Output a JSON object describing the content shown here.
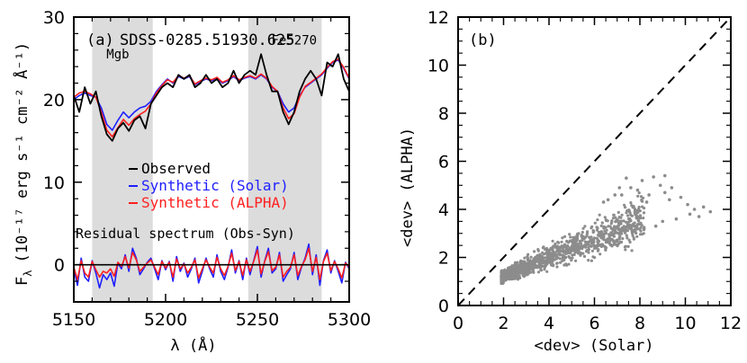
{
  "chart_data": [
    {
      "type": "line",
      "panel_label": "(a)",
      "title": "SDSS-0285.51930.625",
      "xlabel": "λ (Å)",
      "ylabel_prefix": "F",
      "ylabel_sub": "λ",
      "ylabel_units": "(10⁻¹⁷ erg s⁻¹ cm⁻² Å⁻¹)",
      "xlim": [
        5150,
        5300
      ],
      "ylim": [
        -4.5,
        30
      ],
      "x_ticks": [
        5150,
        5200,
        5250,
        5300
      ],
      "y_ticks": [
        0,
        10,
        20,
        30
      ],
      "shaded_regions": [
        {
          "name": "Mgb",
          "range": [
            5160,
            5193
          ]
        },
        {
          "name": "Fe5270",
          "range": [
            5245,
            5285
          ]
        }
      ],
      "annotations": [
        {
          "text": "Mgb",
          "x": 5174,
          "y": 25.0
        },
        {
          "text": "Fe5270",
          "x": 5270,
          "y": 26.7
        },
        {
          "text": "Residual spectrum (Obs-Syn)",
          "x": 5151,
          "y": 3.2
        }
      ],
      "legend": [
        "Observed",
        "Synthetic (Solar)",
        "Synthetic (ALPHA)"
      ],
      "series": [
        {
          "name": "Observed",
          "color": "#000000",
          "x": [
            5150,
            5153,
            5156,
            5159,
            5162,
            5165,
            5168,
            5171,
            5174,
            5177,
            5180,
            5183,
            5186,
            5189,
            5192,
            5195,
            5198,
            5201,
            5204,
            5207,
            5210,
            5213,
            5216,
            5219,
            5222,
            5225,
            5228,
            5231,
            5234,
            5237,
            5240,
            5243,
            5246,
            5249,
            5252,
            5255,
            5258,
            5261,
            5264,
            5267,
            5270,
            5273,
            5276,
            5279,
            5282,
            5285,
            5288,
            5291,
            5294,
            5297,
            5300
          ],
          "y": [
            20.5,
            18.5,
            21.5,
            19.5,
            21.0,
            18.0,
            15.8,
            15.0,
            16.5,
            17.2,
            16.2,
            17.5,
            18.0,
            16.5,
            19.5,
            20.5,
            21.5,
            22.0,
            21.5,
            23.0,
            22.5,
            23.0,
            21.5,
            22.0,
            23.0,
            22.0,
            22.5,
            21.5,
            22.0,
            23.5,
            22.0,
            23.0,
            23.5,
            23.0,
            25.5,
            23.0,
            21.0,
            21.0,
            18.5,
            17.0,
            18.5,
            21.0,
            22.5,
            23.5,
            22.5,
            20.5,
            24.5,
            24.0,
            25.5,
            22.5,
            21.0
          ]
        },
        {
          "name": "Synthetic (Solar)",
          "color": "#1f1fff",
          "x": [
            5150,
            5153,
            5156,
            5159,
            5162,
            5165,
            5168,
            5171,
            5174,
            5177,
            5180,
            5183,
            5186,
            5189,
            5192,
            5195,
            5198,
            5201,
            5204,
            5207,
            5210,
            5213,
            5216,
            5219,
            5222,
            5225,
            5228,
            5231,
            5234,
            5237,
            5240,
            5243,
            5246,
            5249,
            5252,
            5255,
            5258,
            5261,
            5264,
            5267,
            5270,
            5273,
            5276,
            5279,
            5282,
            5285,
            5288,
            5291,
            5294,
            5297,
            5300
          ],
          "y": [
            20.0,
            20.5,
            20.8,
            20.5,
            20.3,
            19.0,
            17.0,
            16.3,
            17.5,
            18.5,
            17.8,
            18.5,
            19.0,
            19.2,
            19.8,
            21.0,
            21.8,
            22.5,
            22.0,
            22.8,
            22.5,
            22.8,
            21.8,
            22.2,
            22.5,
            22.3,
            22.6,
            22.0,
            22.3,
            22.8,
            22.3,
            22.6,
            22.8,
            22.5,
            23.0,
            22.5,
            21.5,
            21.0,
            19.5,
            18.5,
            19.0,
            20.5,
            21.5,
            22.0,
            22.5,
            23.0,
            23.8,
            24.5,
            24.8,
            23.8,
            22.5
          ]
        },
        {
          "name": "Synthetic (ALPHA)",
          "color": "#ff2020",
          "x": [
            5150,
            5153,
            5156,
            5159,
            5162,
            5165,
            5168,
            5171,
            5174,
            5177,
            5180,
            5183,
            5186,
            5189,
            5192,
            5195,
            5198,
            5201,
            5204,
            5207,
            5210,
            5213,
            5216,
            5219,
            5222,
            5225,
            5228,
            5231,
            5234,
            5237,
            5240,
            5243,
            5246,
            5249,
            5252,
            5255,
            5258,
            5261,
            5264,
            5267,
            5270,
            5273,
            5276,
            5279,
            5282,
            5285,
            5288,
            5291,
            5294,
            5297,
            5300
          ],
          "y": [
            20.3,
            20.8,
            21.0,
            20.7,
            20.3,
            18.5,
            16.3,
            15.5,
            16.6,
            17.6,
            16.9,
            17.7,
            18.2,
            18.6,
            19.5,
            20.8,
            21.7,
            22.4,
            22.1,
            22.9,
            22.6,
            22.9,
            21.9,
            22.3,
            22.6,
            22.4,
            22.7,
            22.1,
            22.4,
            22.9,
            22.4,
            22.7,
            22.9,
            22.6,
            23.1,
            22.6,
            21.6,
            21.0,
            19.0,
            17.7,
            18.3,
            20.3,
            21.6,
            22.1,
            22.6,
            23.1,
            23.9,
            24.6,
            24.9,
            23.9,
            22.6
          ]
        },
        {
          "name": "Residual (Obs-Solar)",
          "color": "#1f1fff",
          "x": [
            5150,
            5152,
            5154,
            5156,
            5158,
            5160,
            5162,
            5164,
            5166,
            5168,
            5170,
            5172,
            5174,
            5176,
            5178,
            5180,
            5182,
            5184,
            5186,
            5188,
            5190,
            5192,
            5194,
            5196,
            5198,
            5200,
            5202,
            5204,
            5206,
            5208,
            5210,
            5212,
            5214,
            5216,
            5218,
            5220,
            5222,
            5224,
            5226,
            5228,
            5230,
            5232,
            5234,
            5236,
            5238,
            5240,
            5242,
            5244,
            5246,
            5248,
            5250,
            5252,
            5254,
            5256,
            5258,
            5260,
            5262,
            5264,
            5266,
            5268,
            5270,
            5272,
            5274,
            5276,
            5278,
            5280,
            5282,
            5284,
            5286,
            5288,
            5290,
            5292,
            5294,
            5296,
            5298,
            5300
          ],
          "y": [
            -0.5,
            -2.5,
            0.8,
            -1.5,
            -2.0,
            0.5,
            -1.0,
            -2.8,
            -1.2,
            -1.8,
            -1.0,
            -2.6,
            0.2,
            -0.5,
            1.2,
            -0.8,
            2.0,
            0.8,
            -1.2,
            -0.5,
            0.3,
            0.8,
            -0.5,
            -1.8,
            0.5,
            -0.6,
            0.4,
            -2.0,
            1.0,
            -0.8,
            0.2,
            -1.5,
            -0.5,
            0.8,
            -2.2,
            -0.8,
            0.8,
            -0.5,
            -1.5,
            1.2,
            -0.8,
            -1.8,
            -0.3,
            1.8,
            -1.0,
            0.5,
            -1.8,
            0.8,
            -1.2,
            0.5,
            2.2,
            -1.5,
            0.5,
            2.0,
            -1.0,
            -0.5,
            1.5,
            -2.0,
            -1.2,
            -0.5,
            1.5,
            -1.8,
            -0.3,
            0.8,
            2.5,
            -1.2,
            1.2,
            -2.5,
            0.5,
            1.8,
            -1.0,
            0.5,
            -0.8,
            -2.2,
            0.3,
            -0.5
          ]
        },
        {
          "name": "Residual (Obs-ALPHA)",
          "color": "#ff2020",
          "x": [
            5150,
            5152,
            5154,
            5156,
            5158,
            5160,
            5162,
            5164,
            5166,
            5168,
            5170,
            5172,
            5174,
            5176,
            5178,
            5180,
            5182,
            5184,
            5186,
            5188,
            5190,
            5192,
            5194,
            5196,
            5198,
            5200,
            5202,
            5204,
            5206,
            5208,
            5210,
            5212,
            5214,
            5216,
            5218,
            5220,
            5222,
            5224,
            5226,
            5228,
            5230,
            5232,
            5234,
            5236,
            5238,
            5240,
            5242,
            5244,
            5246,
            5248,
            5250,
            5252,
            5254,
            5256,
            5258,
            5260,
            5262,
            5264,
            5266,
            5268,
            5270,
            5272,
            5274,
            5276,
            5278,
            5280,
            5282,
            5284,
            5286,
            5288,
            5290,
            5292,
            5294,
            5296,
            5298,
            5300
          ],
          "y": [
            -0.3,
            -1.8,
            0.5,
            -1.0,
            -1.5,
            0.4,
            -0.6,
            -1.5,
            -0.8,
            -1.0,
            -0.5,
            -1.4,
            0.3,
            -0.2,
            1.0,
            -0.4,
            1.5,
            0.6,
            -0.8,
            -0.3,
            0.2,
            0.6,
            -0.3,
            -1.2,
            0.4,
            -0.4,
            0.3,
            -1.5,
            0.7,
            -0.5,
            0.1,
            -1.0,
            -0.3,
            0.6,
            -1.6,
            -0.5,
            0.6,
            -0.3,
            -1.0,
            0.9,
            -0.5,
            -1.3,
            -0.2,
            1.4,
            -0.7,
            0.4,
            -1.3,
            0.6,
            -0.8,
            0.4,
            1.8,
            -1.1,
            0.4,
            1.6,
            -0.7,
            -0.3,
            1.2,
            -1.5,
            -0.8,
            -0.3,
            1.2,
            -1.3,
            -0.2,
            0.6,
            2.0,
            -0.8,
            0.9,
            -1.8,
            0.4,
            1.4,
            -0.7,
            0.4,
            -0.5,
            -1.6,
            0.2,
            -0.3
          ]
        }
      ]
    },
    {
      "type": "scatter",
      "panel_label": "(b)",
      "xlabel": "<dev> (Solar)",
      "ylabel": "<dev> (ALPHA)",
      "xlim": [
        0,
        12
      ],
      "ylim": [
        0,
        12
      ],
      "x_ticks": [
        0,
        2,
        4,
        6,
        8,
        10,
        12
      ],
      "y_ticks": [
        0,
        2,
        4,
        6,
        8,
        10,
        12
      ],
      "reference_line": {
        "style": "dashed",
        "from": [
          0,
          0
        ],
        "to": [
          12,
          12
        ]
      },
      "point_color": "#8c8c8c",
      "cloud": {
        "n_points": 1100,
        "x_range": [
          1.9,
          8.2
        ],
        "relation": "y ≈ 1.2 + 0.35·(x−2) to 1.2 + 0.45·(x−2), spread grows with x"
      },
      "points": [
        [
          7.4,
          5.3
        ],
        [
          8.1,
          5.2
        ],
        [
          8.6,
          5.35
        ],
        [
          9.1,
          5.4
        ],
        [
          8.9,
          5.0
        ],
        [
          9.4,
          4.9
        ],
        [
          9.8,
          4.5
        ],
        [
          10.1,
          4.2
        ],
        [
          10.4,
          4.0
        ],
        [
          10.8,
          4.1
        ],
        [
          11.1,
          3.9
        ],
        [
          10.2,
          3.8
        ],
        [
          9.6,
          3.6
        ],
        [
          9.0,
          3.5
        ],
        [
          8.7,
          3.3
        ],
        [
          7.9,
          4.8
        ],
        [
          8.4,
          4.6
        ],
        [
          7.6,
          4.9
        ],
        [
          9.3,
          4.4
        ],
        [
          10.6,
          3.7
        ],
        [
          8.3,
          4.3
        ],
        [
          9.1,
          4.7
        ],
        [
          6.9,
          4.6
        ],
        [
          7.1,
          4.9
        ],
        [
          6.6,
          4.4
        ],
        [
          7.2,
          4.6
        ],
        [
          6.4,
          4.3
        ]
      ]
    }
  ]
}
